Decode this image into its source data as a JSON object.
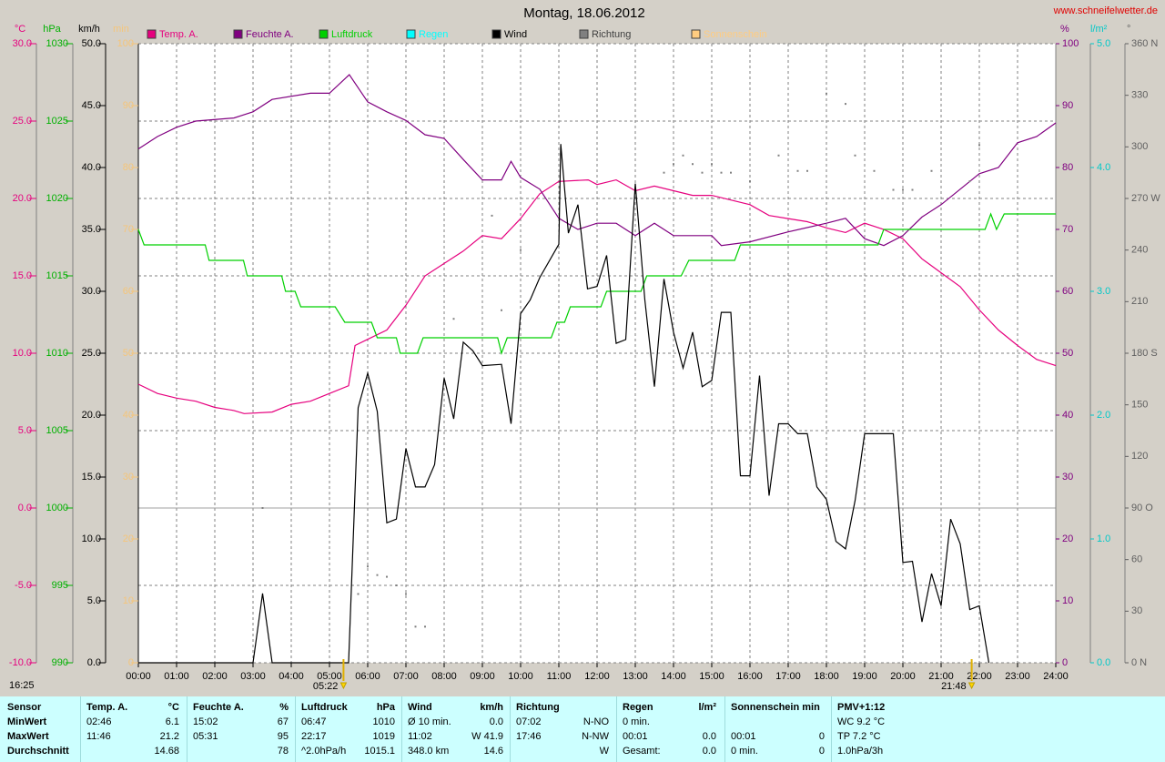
{
  "chart_data": {
    "type": "line",
    "title": "Montag, 18.06.2012",
    "source": "www.schneifelwetter.de",
    "timestamp": "16:25",
    "xlim": [
      0,
      24
    ],
    "xticks": [
      {
        "value": 0,
        "label": "00:00"
      },
      {
        "value": 1,
        "label": "01:00"
      },
      {
        "value": 2,
        "label": "02:00"
      },
      {
        "value": 3,
        "label": "03:00"
      },
      {
        "value": 4,
        "label": "04:00"
      },
      {
        "value": 5,
        "label": "05:00"
      },
      {
        "value": 6,
        "label": "06:00"
      },
      {
        "value": 7,
        "label": "07:00"
      },
      {
        "value": 8,
        "label": "08:00"
      },
      {
        "value": 9,
        "label": "09:00"
      },
      {
        "value": 10,
        "label": "10:00"
      },
      {
        "value": 11,
        "label": "11:00"
      },
      {
        "value": 12,
        "label": "12:00"
      },
      {
        "value": 13,
        "label": "13:00"
      },
      {
        "value": 14,
        "label": "14:00"
      },
      {
        "value": 15,
        "label": "15:00"
      },
      {
        "value": 16,
        "label": "16:00"
      },
      {
        "value": 17,
        "label": "17:00"
      },
      {
        "value": 18,
        "label": "18:00"
      },
      {
        "value": 19,
        "label": "19:00"
      },
      {
        "value": 20,
        "label": "20:00"
      },
      {
        "value": 21,
        "label": "21:00"
      },
      {
        "value": 22,
        "label": "22:00"
      },
      {
        "value": 23,
        "label": "23:00"
      },
      {
        "value": 24,
        "label": "24:00"
      }
    ],
    "grid": true,
    "axes": [
      {
        "label": "°C",
        "color": "#e6007e",
        "lim": [
          -10,
          30
        ],
        "ticks": [
          {
            "value": -10,
            "label": "-10.0"
          },
          {
            "value": -5,
            "label": "-5.0"
          },
          {
            "value": 0,
            "label": "0.0"
          },
          {
            "value": 5,
            "label": "5.0"
          },
          {
            "value": 10,
            "label": "10.0"
          },
          {
            "value": 15,
            "label": "15.0"
          },
          {
            "value": 20,
            "label": "20.0"
          },
          {
            "value": 25,
            "label": "25.0"
          },
          {
            "value": 30,
            "label": "30.0"
          }
        ]
      },
      {
        "label": "hPa",
        "color": "#00b000",
        "lim": [
          990,
          1030
        ],
        "ticks": [
          990,
          995,
          1000,
          1005,
          1010,
          1015,
          1020,
          1025,
          1030
        ]
      },
      {
        "label": "km/h",
        "color": "#000000",
        "lim": [
          0,
          50
        ],
        "ticks": [
          {
            "value": 0,
            "label": "0.0"
          },
          {
            "value": 5,
            "label": "5.0"
          },
          {
            "value": 10,
            "label": "10.0"
          },
          {
            "value": 15,
            "label": "15.0"
          },
          {
            "value": 20,
            "label": "20.0"
          },
          {
            "value": 25,
            "label": "25.0"
          },
          {
            "value": 30,
            "label": "30.0"
          },
          {
            "value": 35,
            "label": "35.0"
          },
          {
            "value": 40,
            "label": "40.0"
          },
          {
            "value": 45,
            "label": "45.0"
          },
          {
            "value": 50,
            "label": "50.0"
          }
        ]
      },
      {
        "label": "min",
        "color": "#f5c57a",
        "lim": [
          0,
          100
        ],
        "ticks": [
          0,
          10,
          20,
          30,
          40,
          50,
          60,
          70,
          80,
          90,
          100
        ]
      },
      {
        "label": "%",
        "color": "#800080",
        "lim": [
          0,
          100
        ],
        "ticks": [
          0,
          10,
          20,
          30,
          40,
          50,
          60,
          70,
          80,
          90,
          100
        ]
      },
      {
        "label": "l/m²",
        "color": "#00c8c8",
        "lim": [
          0,
          5
        ],
        "ticks": [
          {
            "value": 0,
            "label": "0.0"
          },
          {
            "value": 1,
            "label": "1.0"
          },
          {
            "value": 2,
            "label": "2.0"
          },
          {
            "value": 3,
            "label": "3.0"
          },
          {
            "value": 4,
            "label": "4.0"
          },
          {
            "value": 5,
            "label": "5.0"
          }
        ]
      },
      {
        "label": "°",
        "color": "#606060",
        "lim": [
          0,
          360
        ],
        "ticks": [
          {
            "value": 0,
            "label": "0 N"
          },
          {
            "value": 30,
            "label": "30"
          },
          {
            "value": 60,
            "label": "60"
          },
          {
            "value": 90,
            "label": "90 O"
          },
          {
            "value": 120,
            "label": "120"
          },
          {
            "value": 150,
            "label": "150"
          },
          {
            "value": 180,
            "label": "180 S"
          },
          {
            "value": 210,
            "label": "210"
          },
          {
            "value": 240,
            "label": "240"
          },
          {
            "value": 270,
            "label": "270 W"
          },
          {
            "value": 300,
            "label": "300"
          },
          {
            "value": 330,
            "label": "330"
          },
          {
            "value": 360,
            "label": "360 N"
          }
        ]
      }
    ],
    "series": [
      {
        "name": "Temp. A.",
        "color": "#e6007e",
        "axis": 0,
        "x": [
          0,
          0.5,
          1,
          1.5,
          2,
          2.5,
          2.77,
          3.5,
          4,
          4.5,
          5,
          5.5,
          5.67,
          6,
          6.5,
          7,
          7.5,
          8,
          8.5,
          9,
          9.5,
          10,
          10.5,
          11,
          11.77,
          12,
          12.5,
          13,
          13.5,
          14,
          14.5,
          15,
          15.5,
          16,
          16.5,
          17,
          17.5,
          18,
          18.5,
          19,
          19.5,
          20,
          20.5,
          21,
          21.5,
          22,
          22.5,
          23,
          23.5,
          24
        ],
        "values": [
          8.0,
          7.4,
          7.1,
          6.9,
          6.5,
          6.3,
          6.1,
          6.2,
          6.7,
          6.9,
          7.4,
          7.9,
          10.5,
          10.9,
          11.5,
          13.1,
          15.0,
          15.8,
          16.6,
          17.6,
          17.4,
          18.7,
          20.3,
          21.1,
          21.2,
          20.9,
          21.2,
          20.5,
          20.8,
          20.5,
          20.2,
          20.2,
          19.9,
          19.6,
          18.9,
          18.7,
          18.5,
          18.1,
          17.8,
          18.4,
          18.0,
          17.4,
          16.1,
          15.2,
          14.3,
          12.8,
          11.5,
          10.5,
          9.6,
          9.2
        ]
      },
      {
        "name": "Feuchte A.",
        "color": "#800080",
        "axis": 4,
        "x": [
          0,
          0.5,
          1,
          1.5,
          2.5,
          3,
          3.5,
          4.5,
          5,
          5.52,
          6,
          6.5,
          7,
          7.5,
          8,
          8.5,
          9,
          9.5,
          9.75,
          10,
          10.5,
          11,
          11.5,
          12,
          12.5,
          13,
          13.5,
          14,
          15,
          15.25,
          16,
          17,
          18,
          18.5,
          19,
          19.5,
          20,
          20.5,
          21,
          21.5,
          22,
          22.5,
          23,
          23.5,
          24
        ],
        "values": [
          83,
          85,
          86.5,
          87.5,
          88,
          89,
          91,
          92,
          92,
          95,
          90.6,
          89,
          87.6,
          85.3,
          84.7,
          81.3,
          78,
          78,
          81,
          78.4,
          76.5,
          71.8,
          70,
          71,
          71,
          69,
          71,
          69,
          69,
          67.4,
          68,
          69.6,
          71,
          71.8,
          68.5,
          67.4,
          69,
          72,
          74,
          76.5,
          79,
          80,
          84,
          85,
          87.2
        ]
      },
      {
        "name": "Luftdruck",
        "color": "#00d000",
        "axis": 1,
        "x": [
          0,
          0.15,
          1.75,
          1.85,
          2.75,
          2.85,
          3.75,
          3.85,
          4.1,
          4.25,
          5.15,
          5.4,
          6.1,
          6.25,
          6.75,
          6.85,
          7.3,
          7.45,
          9.4,
          9.5,
          9.65,
          10.8,
          10.95,
          11.15,
          11.3,
          12.1,
          12.25,
          13.15,
          13.3,
          14.2,
          14.4,
          15.6,
          15.75,
          19.35,
          19.5,
          22.15,
          22.3,
          22.45,
          22.65,
          24
        ],
        "values": [
          1018,
          1017,
          1017,
          1016,
          1016,
          1015,
          1015,
          1014,
          1014,
          1013,
          1013,
          1012,
          1012,
          1011,
          1011,
          1010,
          1010,
          1011,
          1011,
          1010,
          1011,
          1011,
          1012,
          1012,
          1013,
          1013,
          1014,
          1014,
          1015,
          1015,
          1016,
          1016,
          1017,
          1017,
          1018,
          1018,
          1019,
          1018,
          1019,
          1019
        ]
      },
      {
        "name": "Regen",
        "color": "#00ffff",
        "axis": 5,
        "x": [],
        "values": []
      },
      {
        "name": "Wind",
        "color": "#000000",
        "axis": 2,
        "x": [
          0,
          3,
          3.25,
          3.5,
          5.5,
          5.75,
          6,
          6.25,
          6.5,
          6.75,
          7,
          7.25,
          7.5,
          7.75,
          8,
          8.25,
          8.5,
          8.75,
          9,
          9.5,
          9.75,
          10,
          10.25,
          10.5,
          11,
          11.05,
          11.25,
          11.5,
          11.75,
          12,
          12.25,
          12.5,
          12.75,
          13,
          13.25,
          13.5,
          13.75,
          14,
          14.25,
          14.5,
          14.75,
          15,
          15.25,
          15.5,
          15.75,
          16,
          16.25,
          16.5,
          16.75,
          17,
          17.25,
          17.5,
          17.75,
          18,
          18.25,
          18.5,
          18.75,
          19,
          19.75,
          20,
          20.25,
          20.5,
          20.75,
          21,
          21.25,
          21.5,
          21.75,
          22,
          22.25
        ],
        "values": [
          0,
          0,
          5.6,
          0,
          0,
          20.6,
          23.4,
          20.3,
          11.3,
          11.6,
          17.3,
          14.2,
          14.2,
          16.0,
          23.0,
          19.7,
          25.9,
          25.2,
          24.0,
          24.1,
          19.3,
          28.2,
          29.3,
          31.1,
          33.8,
          41.9,
          34.7,
          37.0,
          30.2,
          30.4,
          32.9,
          25.8,
          26.1,
          38.7,
          29.3,
          22.3,
          31.0,
          26.7,
          23.8,
          26.7,
          22.3,
          22.8,
          28.3,
          28.3,
          15.1,
          15.1,
          23.2,
          13.5,
          19.3,
          19.3,
          18.5,
          18.5,
          14.2,
          13.2,
          9.8,
          9.2,
          13.1,
          18.5,
          18.5,
          8.1,
          8.2,
          3.3,
          7.2,
          4.6,
          11.6,
          9.6,
          4.3,
          4.6,
          0
        ]
      },
      {
        "name": "Richtung",
        "color": "#808080",
        "axis": 6,
        "style": "dots",
        "x": [
          3.25,
          5.75,
          6,
          6.25,
          6.5,
          6.75,
          7,
          7.25,
          7.5,
          8.25,
          9.25,
          9.5,
          10,
          13.75,
          14,
          14.25,
          14.5,
          14.75,
          15,
          15.25,
          15.5,
          16,
          16.75,
          17.25,
          17.5,
          18,
          18.5,
          18.75,
          19.25,
          19.75,
          20,
          20.25,
          20.75,
          21.75,
          22
        ],
        "values": [
          90,
          40,
          56,
          51,
          50,
          45,
          40,
          21,
          21,
          200,
          260,
          205,
          240,
          285,
          290,
          295,
          290,
          285,
          290,
          285,
          285,
          280,
          295,
          286,
          286,
          331,
          325,
          295,
          286,
          275,
          275,
          275,
          286,
          280,
          301
        ]
      },
      {
        "name": "Sonnenschein",
        "color": "#ffcc80",
        "axis": 3,
        "x": [],
        "values": []
      }
    ],
    "annotations": [
      {
        "x": 5.367,
        "text": "05:22"
      },
      {
        "x": 21.8,
        "text": "21:48"
      }
    ]
  },
  "table": {
    "header": [
      {
        "l": "Sensor"
      },
      {
        "l": "Temp. A.",
        "r": "°C"
      },
      {
        "l": "Feuchte A.",
        "r": "%"
      },
      {
        "l": "Luftdruck",
        "r": "hPa"
      },
      {
        "l": "Wind",
        "r": "km/h"
      },
      {
        "l": "Richtung"
      },
      {
        "l": "Regen",
        "r": "l/m²"
      },
      {
        "l": "Sonnenschein min"
      },
      {
        "l": "PMV+1:12"
      }
    ],
    "rows": [
      [
        {
          "l": "MinWert"
        },
        {
          "l": "02:46",
          "r": "6.1"
        },
        {
          "l": "15:02",
          "r": "67"
        },
        {
          "l": "06:47",
          "r": "1010"
        },
        {
          "l": "Ø 10 min.",
          "r": "0.0"
        },
        {
          "l": "07:02",
          "r": "N-NO"
        },
        {
          "l": "0 min."
        },
        {},
        {
          "l": "WC 9.2 °C"
        }
      ],
      [
        {
          "l": "MaxWert"
        },
        {
          "l": "11:46",
          "r": "21.2"
        },
        {
          "l": "05:31",
          "r": "95"
        },
        {
          "l": "22:17",
          "r": "1019"
        },
        {
          "l": "11:02",
          "r": "W 41.9"
        },
        {
          "l": "17:46",
          "r": "N-NW"
        },
        {
          "l": "00:01",
          "r": "0.0"
        },
        {
          "l": "00:01",
          "r": "0"
        },
        {
          "l": "TP 7.2 °C"
        }
      ],
      [
        {
          "l": "Durchschnitt"
        },
        {
          "r": "14.68"
        },
        {
          "r": "78"
        },
        {
          "l": "^2.0hPa/h",
          "r": "1015.1"
        },
        {
          "l": "348.0 km",
          "r": "14.6"
        },
        {
          "r": "W"
        },
        {
          "l": "Gesamt:",
          "r": "0.0"
        },
        {
          "l": "0 min.",
          "r": "0"
        },
        {
          "l": "1.0hPa/3h"
        }
      ]
    ]
  }
}
